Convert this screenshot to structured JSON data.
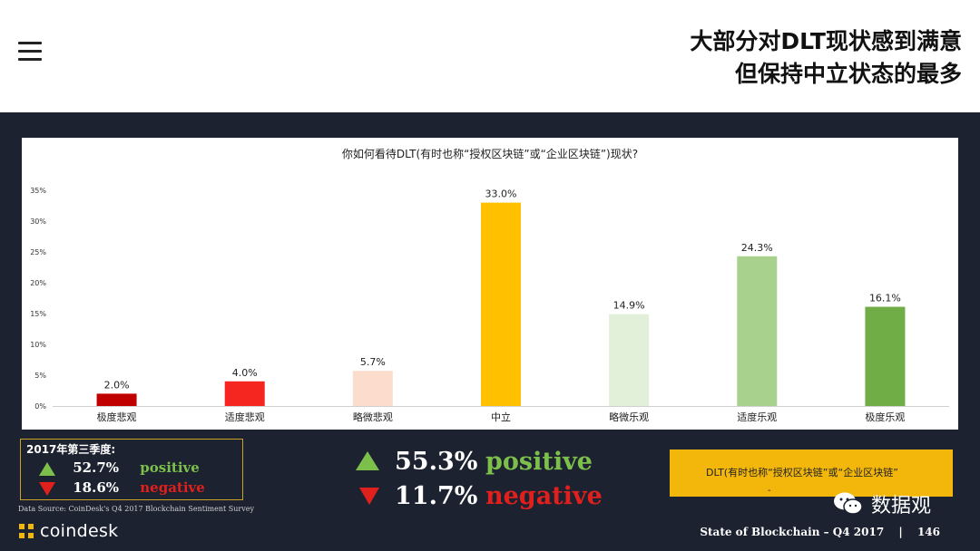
{
  "header": {
    "title_line1": "大部分对DLT现状感到满意",
    "title_line2": "但保持中立状态的最多"
  },
  "chart_data": {
    "type": "bar",
    "title": "你如何看待DLT(有时也称“授权区块链”或“企业区块链”)现状?",
    "categories": [
      "极度悲观",
      "适度悲观",
      "略微悲观",
      "中立",
      "略微乐观",
      "适度乐观",
      "极度乐观"
    ],
    "values": [
      2.0,
      4.0,
      5.7,
      33.0,
      14.9,
      24.3,
      16.1
    ],
    "value_labels": [
      "2.0%",
      "4.0%",
      "5.7%",
      "33.0%",
      "14.9%",
      "24.3%",
      "16.1%"
    ],
    "bar_colors": [
      "#c00000",
      "#f4261f",
      "#fbdccd",
      "#ffc000",
      "#e2efd9",
      "#a9d18e",
      "#70ad47"
    ],
    "yticks": [
      "0%",
      "5%",
      "10%",
      "15%",
      "20%",
      "25%",
      "30%",
      "35%"
    ],
    "ylim": [
      0,
      35
    ],
    "xlabel": "",
    "ylabel": "",
    "grid": false,
    "legend": "none"
  },
  "q3_summary": {
    "title": "2017年第三季度:",
    "positive_value": "52.7%",
    "positive_label": "positive",
    "negative_value": "18.6%",
    "negative_label": "negative"
  },
  "summary": {
    "positive_value": "55.3%",
    "positive_label": "positive",
    "negative_value": "11.7%",
    "negative_label": "negative"
  },
  "callout": {
    "text": "DLT(有时也称“授权区块链”或“企业区块链”",
    "dash": "-"
  },
  "source": "Data Source: CoinDesk's Q4 2017 Blockchain Sentiment Survey",
  "brand": "coindesk",
  "wechat": "数据观",
  "footer": {
    "report": "State of Blockchain – Q4 2017",
    "separator": "|",
    "page": "146"
  },
  "colors": {
    "positive": "#7cc04b",
    "negative": "#e0201c",
    "accent": "#f3b70b",
    "background": "#1c2230"
  }
}
